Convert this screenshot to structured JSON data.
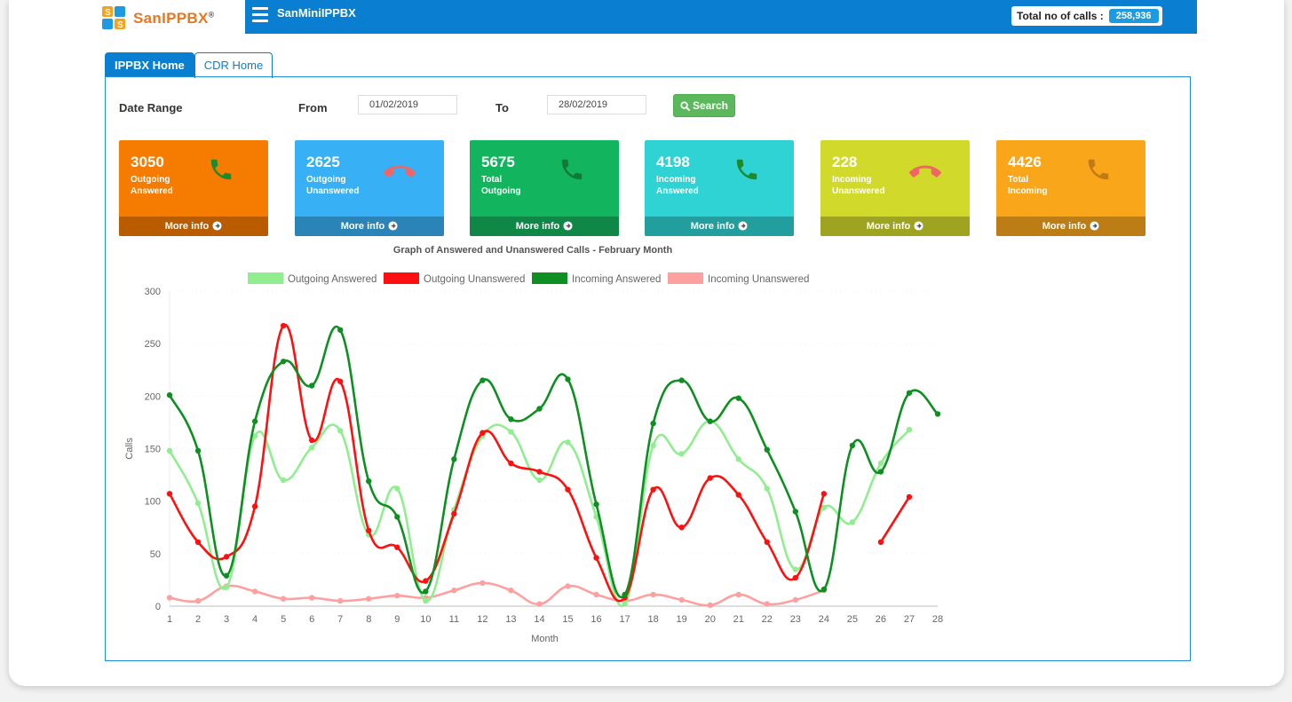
{
  "app": {
    "brand": "SanIPPBX",
    "brand_mark": "®",
    "nav_title": "SanMiniIPPBX",
    "total_calls_label": "Total no of calls :",
    "total_calls_value": "258,936"
  },
  "tabs": [
    {
      "label": "IPPBX Home",
      "active": true
    },
    {
      "label": "CDR Home",
      "active": false
    }
  ],
  "filter": {
    "date_range_label": "Date Range",
    "from_label": "From",
    "from_value": "01/02/2019",
    "to_label": "To",
    "to_value": "28/02/2019",
    "search_label": "Search"
  },
  "cards": [
    {
      "value": "3050",
      "line1": "Outgoing",
      "line2": "Answered",
      "more": "More info",
      "color": "#f57c00",
      "footer": "#b95c00",
      "icon": "phone-icon",
      "icon_color": "#1e8a2c"
    },
    {
      "value": "2625",
      "line1": "Outgoing",
      "line2": "Unanswered",
      "more": "More info",
      "color": "#37b0f5",
      "footer": "#2a84b8",
      "icon": "phone-hangup-icon",
      "icon_color": "#f06666"
    },
    {
      "value": "5675",
      "line1": "Total",
      "line2": "Outgoing",
      "more": "More info",
      "color": "#13b45e",
      "footer": "#0e8747",
      "icon": "phone-icon",
      "icon_color": "#0f7a3a"
    },
    {
      "value": "4198",
      "line1": "Incoming",
      "line2": "Answered",
      "more": "More info",
      "color": "#2fd3d3",
      "footer": "#239e9e",
      "icon": "phone-icon",
      "icon_color": "#1e8a2c"
    },
    {
      "value": "228",
      "line1": "Incoming",
      "line2": "Unanswered",
      "more": "More info",
      "color": "#d1d92a",
      "footer": "#9ea41f",
      "icon": "phone-hangup-icon",
      "icon_color": "#f06666"
    },
    {
      "value": "4426",
      "line1": "Total",
      "line2": "Incoming",
      "more": "More info",
      "color": "#faa61a",
      "footer": "#bc7d14",
      "icon": "phone-icon",
      "icon_color": "#c27a14"
    }
  ],
  "chart_data": {
    "type": "line",
    "title": "Graph of Answered and Unanswered Calls - February Month",
    "xlabel": "Month",
    "ylabel": "Calls",
    "ylim": [
      0,
      300
    ],
    "yticks": [
      0,
      50,
      100,
      150,
      200,
      250,
      300
    ],
    "x": [
      1,
      2,
      3,
      4,
      5,
      6,
      7,
      8,
      9,
      10,
      11,
      12,
      13,
      14,
      15,
      16,
      17,
      18,
      19,
      20,
      21,
      22,
      23,
      24,
      25,
      26,
      27,
      28
    ],
    "legend_position": "top",
    "series": [
      {
        "name": "Outgoing Answered",
        "color": "#90ee90",
        "values": [
          148,
          98,
          18,
          162,
          120,
          151,
          167,
          68,
          112,
          5,
          92,
          162,
          166,
          120,
          156,
          85,
          2,
          153,
          145,
          176,
          140,
          112,
          35,
          94,
          80,
          136,
          168,
          null
        ]
      },
      {
        "name": "Outgoing Unanswered",
        "color": "#ff1010",
        "values": [
          107,
          61,
          47,
          95,
          267,
          158,
          214,
          72,
          56,
          24,
          88,
          165,
          136,
          128,
          111,
          46,
          8,
          111,
          75,
          122,
          106,
          61,
          27,
          107,
          null,
          61,
          104,
          null
        ]
      },
      {
        "name": "Incoming Answered",
        "color": "#0e8f22",
        "values": [
          201,
          148,
          29,
          176,
          233,
          210,
          263,
          119,
          85,
          14,
          140,
          215,
          178,
          188,
          216,
          97,
          11,
          174,
          215,
          176,
          198,
          149,
          90,
          16,
          153,
          128,
          203,
          183
        ]
      },
      {
        "name": "Incoming Unanswered",
        "color": "#ffa0a0",
        "values": [
          8,
          5,
          19,
          14,
          7,
          8,
          5,
          7,
          10,
          8,
          15,
          22,
          15,
          2,
          19,
          11,
          5,
          11,
          6,
          1,
          11,
          2,
          6,
          15,
          null,
          null,
          null,
          null
        ]
      }
    ]
  }
}
